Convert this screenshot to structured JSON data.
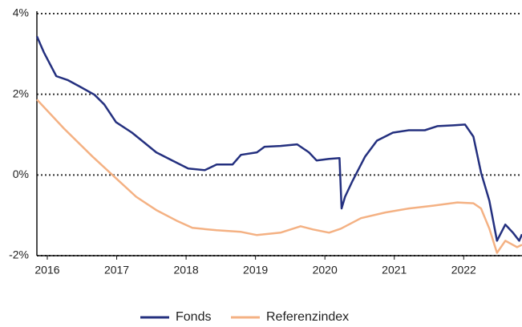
{
  "chart_data": {
    "type": "line",
    "xlim": [
      2015.85,
      2022.84
    ],
    "xticks": [
      2016,
      2017,
      2018,
      2019,
      2020,
      2021,
      2022
    ],
    "ylim": [
      -2,
      4
    ],
    "yticks": [
      {
        "value": -2,
        "label": "-2%"
      },
      {
        "value": 0,
        "label": "0%"
      },
      {
        "value": 2,
        "label": "2%"
      },
      {
        "value": 4,
        "label": "4%"
      }
    ],
    "grid": true,
    "legend": "bottom",
    "series": [
      {
        "name": "Fonds",
        "color": "#24307f",
        "x": [
          2015.85,
          2015.95,
          2016.13,
          2016.3,
          2016.47,
          2016.68,
          2016.82,
          2016.99,
          2017.22,
          2017.4,
          2017.57,
          2017.8,
          2018.03,
          2018.27,
          2018.44,
          2018.67,
          2018.79,
          2019.02,
          2019.13,
          2019.36,
          2019.6,
          2019.77,
          2019.88,
          2020.06,
          2020.21,
          2020.24,
          2020.29,
          2020.4,
          2020.58,
          2020.75,
          2020.98,
          2021.21,
          2021.44,
          2021.62,
          2021.85,
          2022.02,
          2022.14,
          2022.25,
          2022.37,
          2022.48,
          2022.6,
          2022.71,
          2022.8,
          2022.84
        ],
        "values": [
          3.44,
          3.04,
          2.45,
          2.35,
          2.19,
          1.99,
          1.75,
          1.31,
          1.05,
          0.8,
          0.56,
          0.36,
          0.16,
          0.12,
          0.26,
          0.26,
          0.5,
          0.56,
          0.7,
          0.72,
          0.76,
          0.56,
          0.36,
          0.4,
          0.42,
          -0.83,
          -0.54,
          -0.14,
          0.46,
          0.85,
          1.05,
          1.11,
          1.11,
          1.21,
          1.23,
          1.25,
          0.95,
          0.06,
          -0.64,
          -1.63,
          -1.23,
          -1.43,
          -1.63,
          -1.47
        ]
      },
      {
        "name": "Referenzindex",
        "color": "#f4b183",
        "x": [
          2015.85,
          2016.24,
          2016.65,
          2016.99,
          2017.28,
          2017.57,
          2017.86,
          2018.09,
          2018.44,
          2018.79,
          2019.02,
          2019.36,
          2019.65,
          2019.83,
          2020.06,
          2020.23,
          2020.52,
          2020.87,
          2021.21,
          2021.56,
          2021.91,
          2022.14,
          2022.25,
          2022.37,
          2022.48,
          2022.6,
          2022.77,
          2022.84
        ],
        "values": [
          1.87,
          1.15,
          0.46,
          -0.08,
          -0.54,
          -0.87,
          -1.13,
          -1.31,
          -1.37,
          -1.41,
          -1.49,
          -1.43,
          -1.27,
          -1.35,
          -1.43,
          -1.33,
          -1.07,
          -0.93,
          -0.83,
          -0.76,
          -0.68,
          -0.7,
          -0.83,
          -1.33,
          -1.93,
          -1.63,
          -1.79,
          -1.73
        ]
      }
    ]
  }
}
